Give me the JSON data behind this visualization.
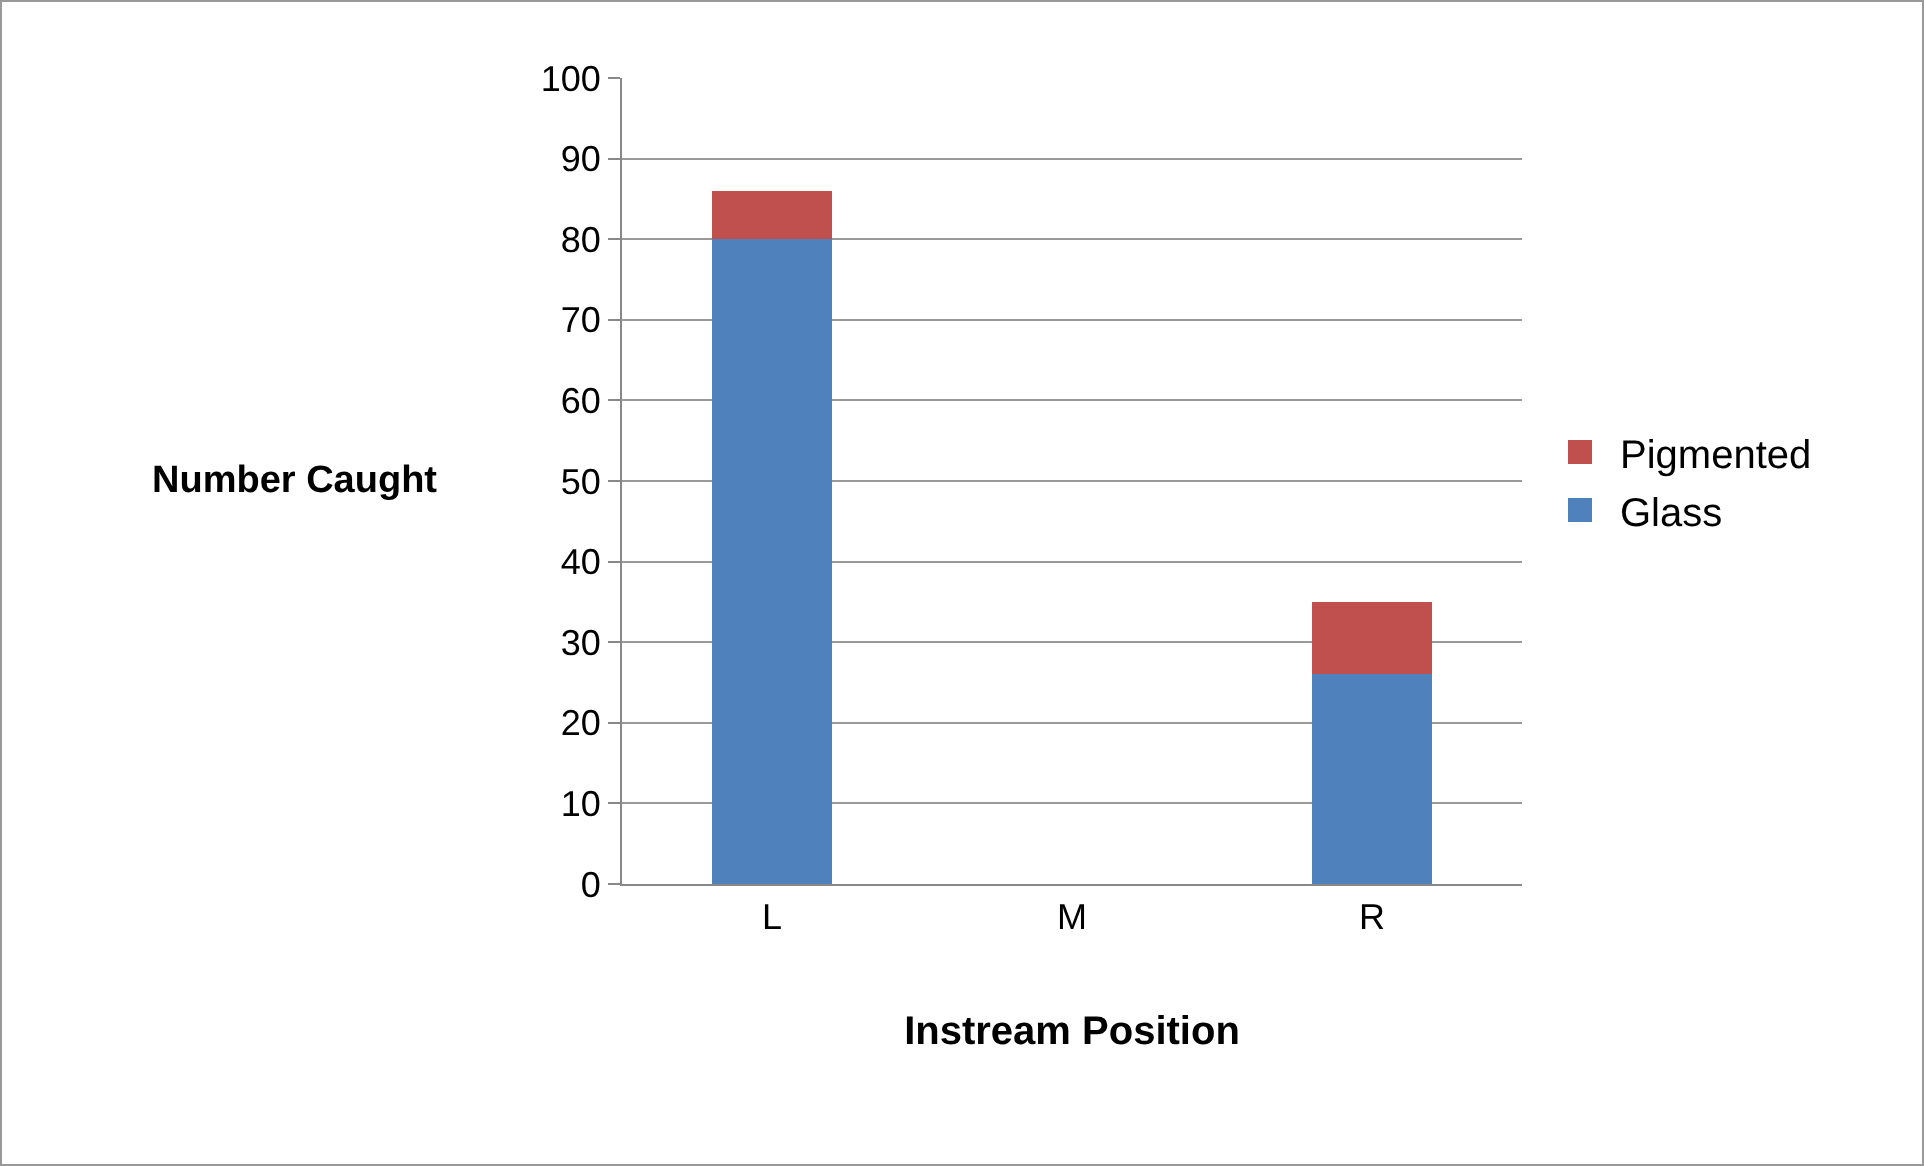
{
  "chart_data": {
    "type": "bar",
    "stacked": true,
    "xlabel": "Instream Position",
    "ylabel": "Number Caught",
    "categories": [
      "L",
      "M",
      "R"
    ],
    "series": [
      {
        "name": "Glass",
        "color": "#4f81bd",
        "values": [
          80,
          0,
          26
        ]
      },
      {
        "name": "Pigmented",
        "color": "#c0504d",
        "values": [
          6,
          0,
          9
        ]
      }
    ],
    "ylim": [
      0,
      100
    ],
    "yticks": [
      0,
      10,
      20,
      30,
      40,
      50,
      60,
      70,
      80,
      90,
      100
    ],
    "grid": "y",
    "legend": "right"
  }
}
